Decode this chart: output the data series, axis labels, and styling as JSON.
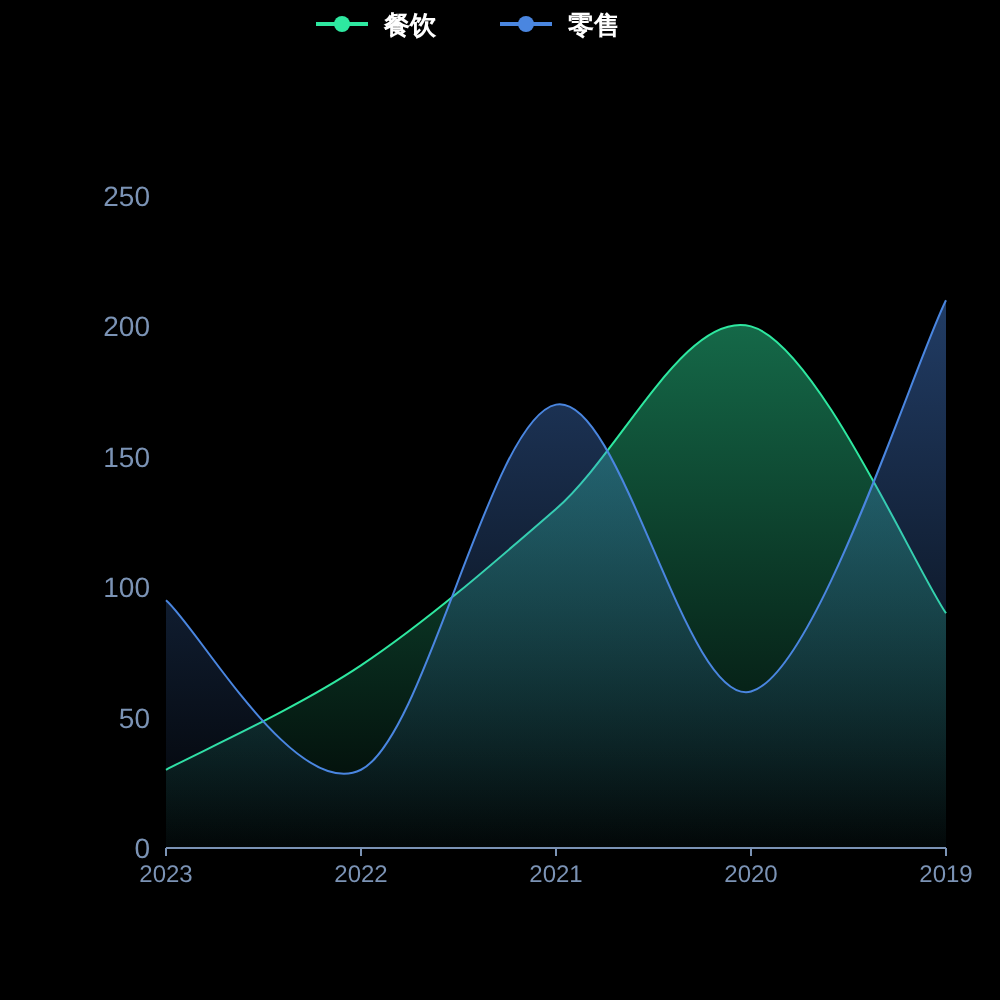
{
  "chart_data": {
    "type": "area",
    "categories": [
      "2023",
      "2022",
      "2021",
      "2020",
      "2019"
    ],
    "series": [
      {
        "name": "餐饮",
        "color": "#2ee8a0",
        "values": [
          30,
          70,
          130,
          200,
          90
        ]
      },
      {
        "name": "零售",
        "color": "#4a86e0",
        "values": [
          95,
          30,
          170,
          60,
          210
        ]
      }
    ],
    "ylim": [
      0,
      250
    ],
    "yticks": [
      0,
      50,
      100,
      150,
      200,
      250
    ],
    "grid": false,
    "legend": "top"
  }
}
